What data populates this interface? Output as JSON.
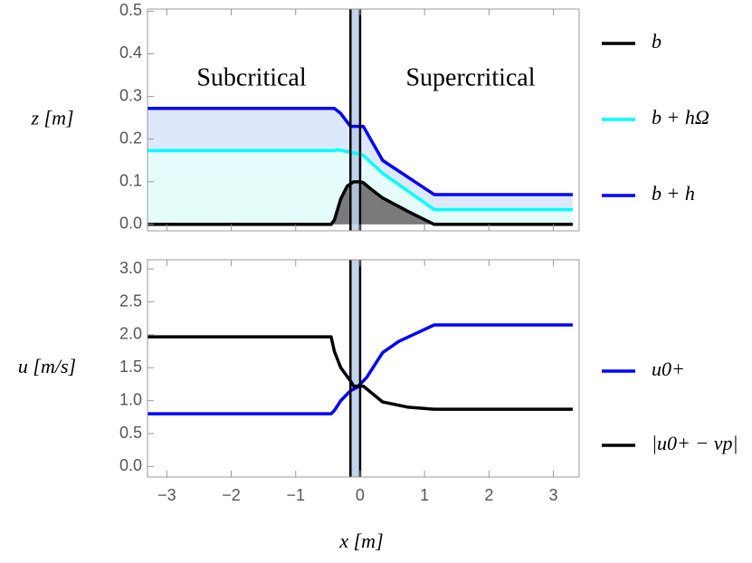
{
  "chart_data": [
    {
      "type": "line",
      "ylabel": "z [m]",
      "xlim": [
        -3.3,
        3.4
      ],
      "ylim": [
        -0.015,
        0.505
      ],
      "yticks": [
        {
          "value": 0,
          "label": "0.0"
        },
        0.1,
        0.2,
        0.3,
        0.4,
        0.5
      ],
      "band": [
        -0.15,
        0.0
      ],
      "band_color": "#b8cce8",
      "annotations": [
        "Subcritical",
        "Supercritical"
      ],
      "series": [
        {
          "name": "b",
          "color": "#000000",
          "fill": "#7a7a7a",
          "x": [
            -3.3,
            -0.45,
            -0.4,
            -0.3,
            -0.2,
            -0.1,
            0,
            0.05,
            0.15,
            0.35,
            0.75,
            1.15,
            3.3
          ],
          "values": [
            0,
            0,
            0.01,
            0.06,
            0.09,
            0.1,
            0.1,
            0.098,
            0.085,
            0.062,
            0.03,
            0,
            0
          ]
        },
        {
          "name": "b + hΩ",
          "color": "#00ffff",
          "fill": "#e4fdfb",
          "x": [
            -3.3,
            -0.4,
            -0.35,
            -0.1,
            0.05,
            0.35,
            1.15,
            3.3
          ],
          "values": [
            0.173,
            0.173,
            0.175,
            0.168,
            0.162,
            0.12,
            0.035,
            0.035
          ]
        },
        {
          "name": "b + h",
          "color": "#0000ff",
          "fill": "#dde8fb",
          "x": [
            -3.3,
            -0.4,
            -0.3,
            -0.15,
            0.05,
            0.35,
            1.15,
            3.3
          ],
          "values": [
            0.272,
            0.272,
            0.26,
            0.23,
            0.23,
            0.15,
            0.07,
            0.07
          ]
        }
      ]
    },
    {
      "type": "line",
      "ylabel": "u [m/s]",
      "xlabel": "x [m]",
      "xlim": [
        -3.3,
        3.4
      ],
      "ylim": [
        -0.16,
        3.14
      ],
      "yticks": [
        {
          "value": 0,
          "label": "0.0"
        },
        0.5,
        {
          "value": 1,
          "label": "1.0"
        },
        1.5,
        {
          "value": 2,
          "label": "2.0"
        },
        2.5,
        {
          "value": 3,
          "label": "3.0"
        }
      ],
      "xticks": [
        {
          "value": -3,
          "label": "−3"
        },
        {
          "value": -2,
          "label": "−2"
        },
        {
          "value": -1,
          "label": "−1"
        },
        0,
        1,
        2,
        3
      ],
      "band": [
        -0.15,
        0.0
      ],
      "band_color": "#b8cce8",
      "series": [
        {
          "name": "u0+",
          "color": "#0000ff",
          "x": [
            -3.3,
            -0.45,
            -0.4,
            -0.3,
            -0.15,
            -0.05,
            0.1,
            0.35,
            0.6,
            1.15,
            3.3
          ],
          "values": [
            0.8,
            0.8,
            0.85,
            1.0,
            1.15,
            1.2,
            1.35,
            1.73,
            1.9,
            2.15,
            2.15
          ]
        },
        {
          "name": "|u0+ − vp|",
          "color": "#000000",
          "x": [
            -3.3,
            -0.45,
            -0.4,
            -0.3,
            -0.15,
            -0.1,
            0.05,
            0.35,
            0.75,
            1.15,
            3.3
          ],
          "values": [
            1.97,
            1.97,
            1.75,
            1.5,
            1.3,
            1.22,
            1.22,
            0.98,
            0.9,
            0.87,
            0.87
          ]
        }
      ]
    }
  ]
}
